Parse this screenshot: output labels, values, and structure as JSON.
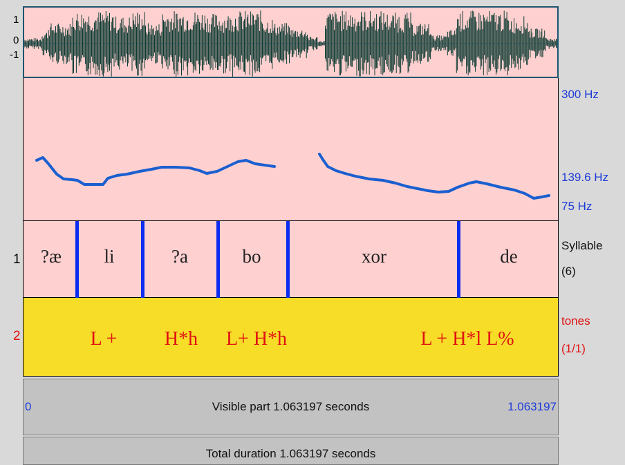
{
  "waveform": {
    "y_labels": [
      "1",
      "0",
      "-1"
    ],
    "color": "#0d3b32"
  },
  "pitch": {
    "max_label": "300 Hz",
    "mid_label": "139.6 Hz",
    "min_label": "75 Hz",
    "line_color": "#1a5fd0"
  },
  "tiers": [
    {
      "number": "1",
      "name": "Syllable",
      "count": "(6)",
      "intervals": [
        "?æ",
        "li",
        "?a",
        "bo",
        "xor",
        "de"
      ]
    },
    {
      "number": "2",
      "name": "tones",
      "count": "(1/1)",
      "labels": [
        "L +",
        "H*h",
        "L+ H*h",
        "L + H*l L%"
      ]
    }
  ],
  "time": {
    "start": "0",
    "end": "1.063197",
    "visible_label": "Visible part 1.063197 seconds",
    "total_label": "Total duration 1.063197 seconds"
  }
}
